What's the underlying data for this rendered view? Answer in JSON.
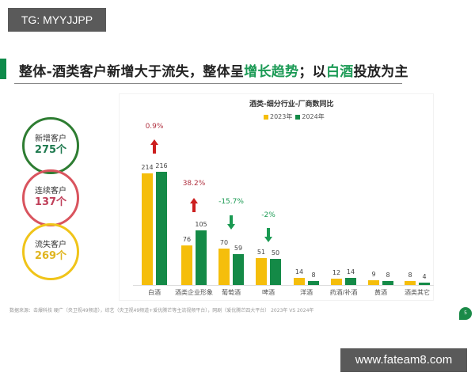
{
  "watermarks": {
    "top": "TG: MYYJJPP",
    "bottom": "www.fateam8.com"
  },
  "header": {
    "title_part1": "整体-酒类客户新增大于流失，整体呈",
    "title_hl1": "增长趋势",
    "title_part2": "；以",
    "title_hl2": "白酒",
    "title_part3": "投放为主"
  },
  "kpis": [
    {
      "label": "新增客户",
      "value": "275个",
      "color": "#2e7d32",
      "text_color": "#1f7a4f"
    },
    {
      "label": "连续客户",
      "value": "137个",
      "color": "#d9545e",
      "text_color": "#c0405a"
    },
    {
      "label": "流失客户",
      "value": "269个",
      "color": "#f0c419",
      "text_color": "#e0b520"
    }
  ],
  "colors": {
    "y2023": "#f5be0b",
    "y2024": "#148a47",
    "up": "#cc1f1f",
    "down": "#1a9a52",
    "up_text": "#b0303f",
    "down_text": "#1a9a52"
  },
  "chart_data": {
    "type": "bar",
    "title": "酒类-细分行业-厂商数同比",
    "categories": [
      "白酒",
      "酒类企业形象",
      "葡萄酒",
      "啤酒",
      "洋酒",
      "药酒/补酒",
      "黄酒",
      "酒类其它"
    ],
    "series": [
      {
        "name": "2023年",
        "values": [
          214,
          76,
          70,
          51,
          14,
          12,
          9,
          8
        ]
      },
      {
        "name": "2024年",
        "values": [
          216,
          105,
          59,
          50,
          8,
          14,
          8,
          4
        ]
      }
    ],
    "annotations": [
      {
        "category": "白酒",
        "text": "0.9%",
        "direction": "up"
      },
      {
        "category": "酒类企业形象",
        "text": "38.2%",
        "direction": "up"
      },
      {
        "category": "葡萄酒",
        "text": "-15.7%",
        "direction": "down"
      },
      {
        "category": "啤酒",
        "text": "-2%",
        "direction": "down"
      }
    ],
    "legend": [
      "2023年",
      "2024年"
    ],
    "legend_position": "top",
    "grid": false,
    "xlabel": "",
    "ylabel": ""
  },
  "footer": {
    "source": "数据来源：击爆科技 硬广（央卫视49频道），综艺（央卫视49频道+爱优腾芒等主流视频平台），网剧（爱优腾芒四大平台） 2023年 VS 2024年",
    "page": "5"
  }
}
